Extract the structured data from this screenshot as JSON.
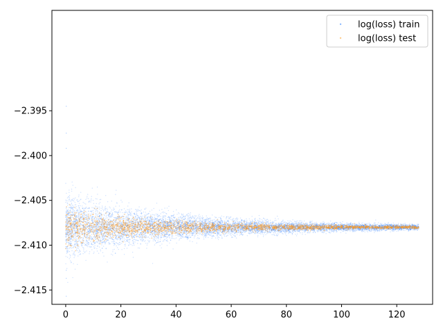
{
  "chart_data": {
    "type": "scatter",
    "title": "",
    "xlabel": "",
    "ylabel": "",
    "xlim": [
      -5,
      133
    ],
    "ylim": [
      -2.4166,
      -2.3838
    ],
    "x_ticks": [
      0,
      20,
      40,
      60,
      80,
      100,
      120
    ],
    "x_tick_labels": [
      "0",
      "20",
      "40",
      "60",
      "80",
      "100",
      "120"
    ],
    "y_ticks": [
      -2.415,
      -2.41,
      -2.405,
      -2.4,
      -2.395
    ],
    "y_tick_labels": [
      "−2.415",
      "−2.410",
      "−2.405",
      "−2.400",
      "−2.395"
    ],
    "grid": false,
    "legend_position": "top-right",
    "center_y": -2.408,
    "series": [
      {
        "name": "log(loss) train",
        "color": "#1f77ff",
        "x_range": [
          0,
          128
        ],
        "spread_at_x0": 0.0017,
        "spread_at_x128": 0.0001,
        "max_outlier": -2.3945,
        "min_outlier": -2.4157
      },
      {
        "name": "log(loss) test",
        "color": "#ff9a1a",
        "x_range": [
          0,
          128
        ],
        "spread_at_x0": 0.0009,
        "spread_at_x128": 5e-05
      }
    ]
  }
}
